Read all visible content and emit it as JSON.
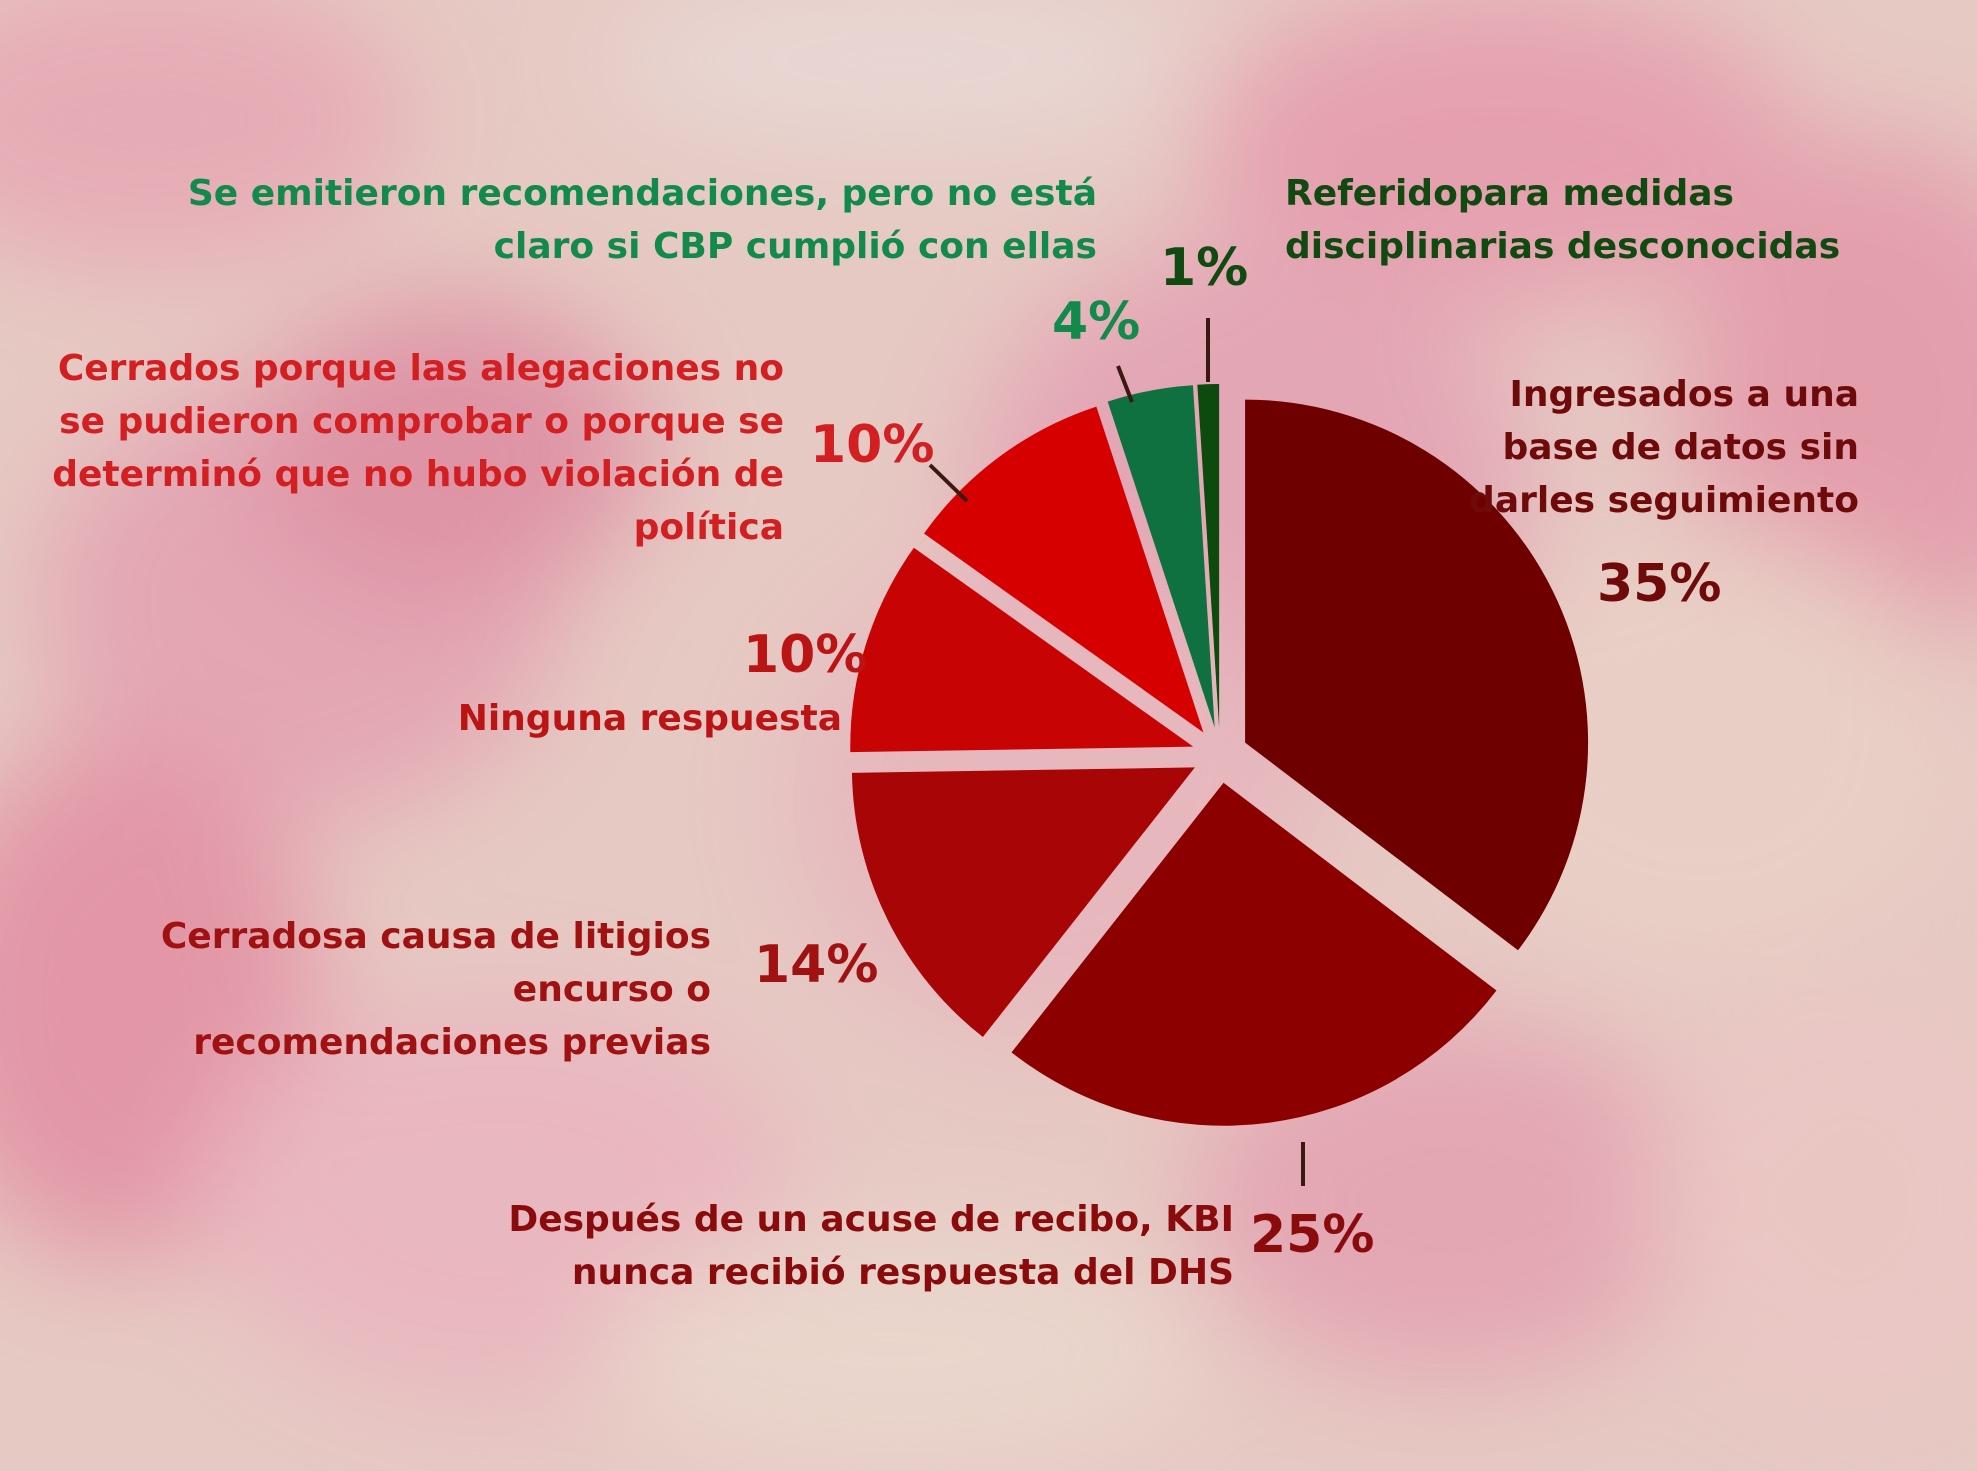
{
  "chart_data": {
    "type": "pie",
    "exploded": true,
    "slices": [
      {
        "label_lines": [
          "Ingresados a una",
          "base de datos sin",
          "darles seguimiento"
        ],
        "value": 35,
        "value_label": "35%",
        "color": "#6e0000",
        "label_color": "#6e0a0a"
      },
      {
        "label_lines": [
          "Después de un acuse de recibo, KBI",
          "nunca recibió respuesta del DHS"
        ],
        "value": 25,
        "value_label": "25%",
        "color": "#8c0000",
        "label_color": "#8a0b0b"
      },
      {
        "label_lines": [
          "Cerradosa causa de litigios",
          "encurso o",
          "recomendaciones previas"
        ],
        "value": 14,
        "value_label": "14%",
        "color": "#a80606",
        "label_color": "#a01212"
      },
      {
        "label_lines": [
          "Ninguna respuesta"
        ],
        "value": 10,
        "value_label": "10%",
        "color": "#c80303",
        "label_color": "#bb1414"
      },
      {
        "label_lines": [
          "Cerrados porque las alegaciones no",
          "se pudieron comprobar o porque se",
          "determinó que no hubo violación de",
          "política"
        ],
        "value": 10,
        "value_label": "10%",
        "color": "#d60000",
        "label_color": "#d21f22"
      },
      {
        "label_lines": [
          "Se emitieron recomendaciones, pero no está",
          "claro si CBP cumplió con ellas"
        ],
        "value": 4,
        "value_label": "4%",
        "color": "#107140",
        "label_color": "#128a4c"
      },
      {
        "label_lines": [
          "Referidopara medidas",
          "disciplinarias desconocidas"
        ],
        "value": 1,
        "value_label": "1%",
        "color": "#0d4a0d",
        "label_color": "#114a11"
      }
    ]
  }
}
